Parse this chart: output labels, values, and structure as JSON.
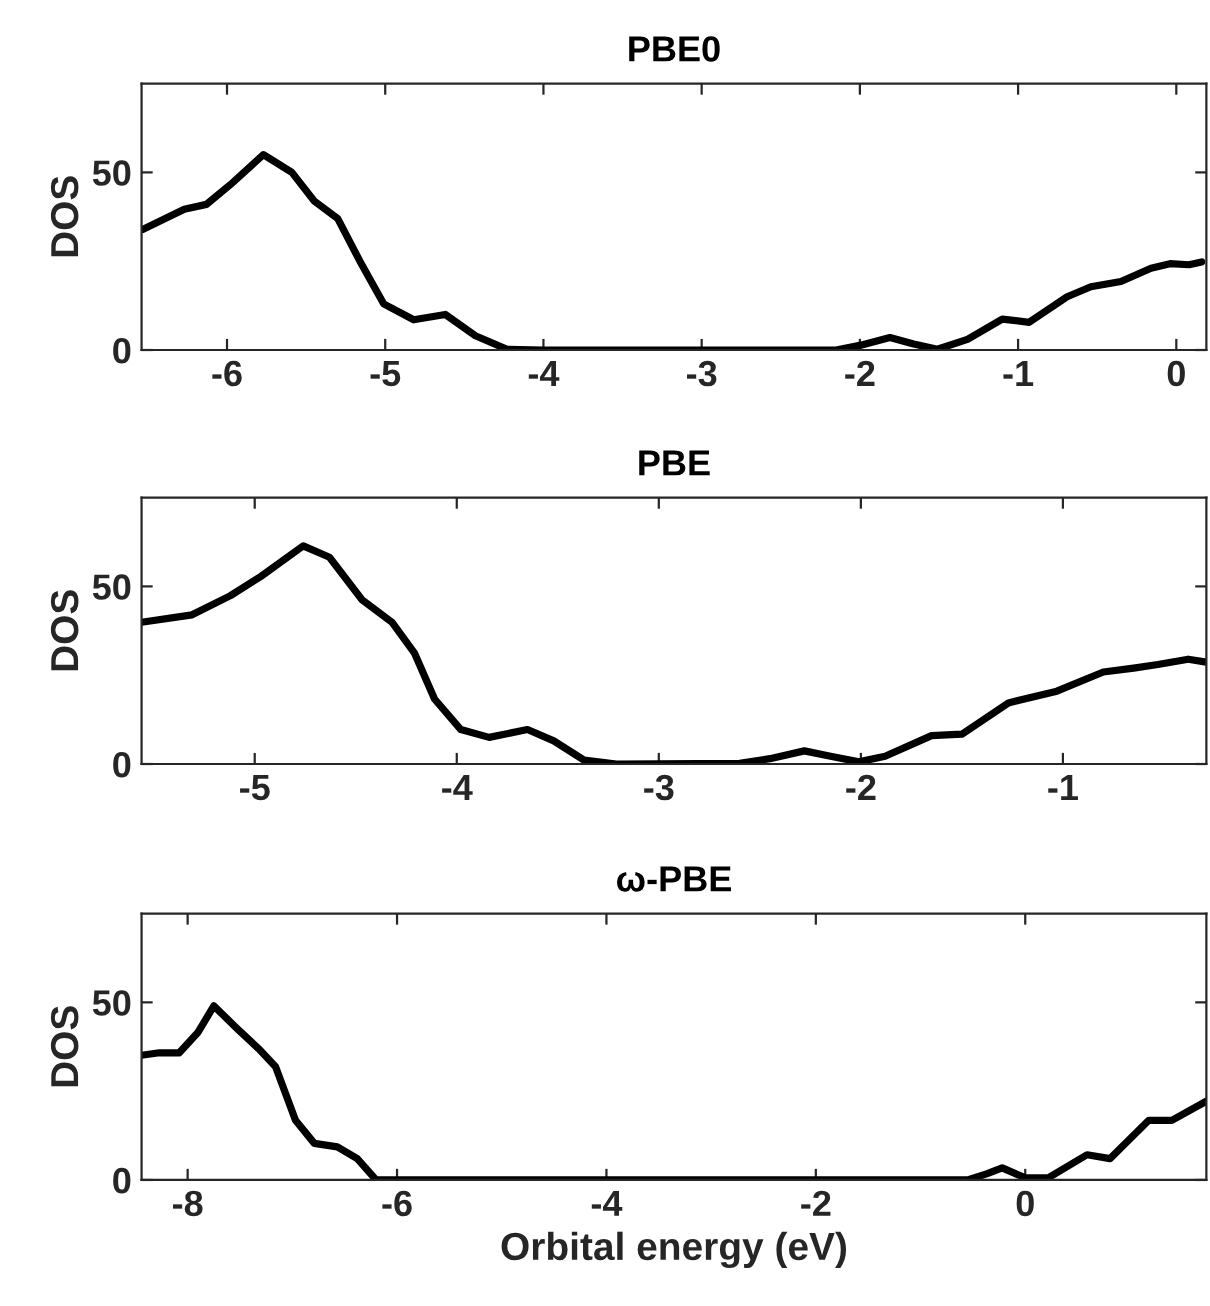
{
  "chart_data": [
    {
      "type": "line",
      "title": "PBE0",
      "ylabel": "DOS",
      "xlim": [
        -6.54,
        0.19
      ],
      "xticks": [
        -6,
        -5,
        -4,
        -3,
        -2,
        -1,
        0
      ],
      "ylim": [
        0,
        75
      ],
      "yticks": [
        0,
        50
      ],
      "grid": false,
      "legend": false,
      "series": [
        {
          "color": "#000000",
          "x": [
            -6.53,
            -6.27,
            -6.13,
            -5.98,
            -5.77,
            -5.59,
            -5.45,
            -5.3,
            -5.16,
            -5.01,
            -4.82,
            -4.62,
            -4.43,
            -4.23,
            -4.0,
            -3.0,
            -2.15,
            -2.0,
            -1.81,
            -1.66,
            -1.51,
            -1.32,
            -1.1,
            -0.93,
            -0.69,
            -0.54,
            -0.35,
            -0.16,
            -0.04,
            0.08,
            0.16
          ],
          "values": [
            34,
            39.6,
            41,
            46.5,
            55,
            50,
            42,
            37,
            25,
            13,
            8.5,
            10,
            4,
            0.2,
            0,
            0,
            0,
            1.3,
            3.5,
            1.7,
            0.2,
            3,
            8.7,
            7.8,
            15,
            17.8,
            19.3,
            23,
            24.3,
            24,
            24.8
          ]
        }
      ]
    },
    {
      "type": "line",
      "title": "PBE",
      "ylabel": "DOS",
      "xlim": [
        -5.56,
        -0.29
      ],
      "xticks": [
        -5,
        -4,
        -3,
        -2,
        -1
      ],
      "ylim": [
        0,
        75
      ],
      "yticks": [
        0,
        50
      ],
      "grid": false,
      "legend": false,
      "series": [
        {
          "color": "#000000",
          "x": [
            -5.56,
            -5.31,
            -5.12,
            -4.97,
            -4.76,
            -4.63,
            -4.47,
            -4.32,
            -4.21,
            -4.11,
            -3.98,
            -3.84,
            -3.65,
            -3.52,
            -3.37,
            -3.21,
            -2.6,
            -2.45,
            -2.28,
            -2.15,
            -2.01,
            -1.88,
            -1.65,
            -1.5,
            -1.27,
            -1.03,
            -0.8,
            -0.65,
            -0.53,
            -0.38,
            -0.29
          ],
          "values": [
            39.9,
            42,
            47.4,
            52.8,
            61.4,
            58.2,
            46.3,
            39.9,
            31.3,
            18.3,
            9.7,
            7.5,
            9.7,
            6.5,
            1.1,
            0,
            0.2,
            1.5,
            3.7,
            2.2,
            0.6,
            2.2,
            8,
            8.4,
            17.2,
            20.5,
            25.9,
            27,
            28,
            29.5,
            28.7
          ]
        }
      ]
    },
    {
      "type": "line",
      "title": "ω-PBE",
      "ylabel": "DOS",
      "xlabel": "Orbital energy (eV)",
      "xlim": [
        -8.44,
        1.73
      ],
      "xticks": [
        -8,
        -6,
        -4,
        -2,
        0
      ],
      "ylim": [
        0,
        75
      ],
      "yticks": [
        0,
        50
      ],
      "grid": false,
      "legend": false,
      "series": [
        {
          "color": "#000000",
          "x": [
            -8.44,
            -8.27,
            -8.08,
            -7.9,
            -7.75,
            -7.53,
            -7.31,
            -7.16,
            -6.97,
            -6.79,
            -6.57,
            -6.38,
            -6.2,
            -0.55,
            -0.37,
            -0.22,
            0,
            0.22,
            0.59,
            0.81,
            1.18,
            1.4,
            1.73
          ],
          "values": [
            35.1,
            35.8,
            35.8,
            41.6,
            49,
            42.7,
            36.6,
            31.9,
            16.8,
            10.3,
            9.3,
            6,
            0,
            0,
            1.7,
            3.4,
            0.6,
            0.6,
            7.1,
            6,
            16.8,
            16.8,
            22.2
          ]
        }
      ]
    }
  ]
}
